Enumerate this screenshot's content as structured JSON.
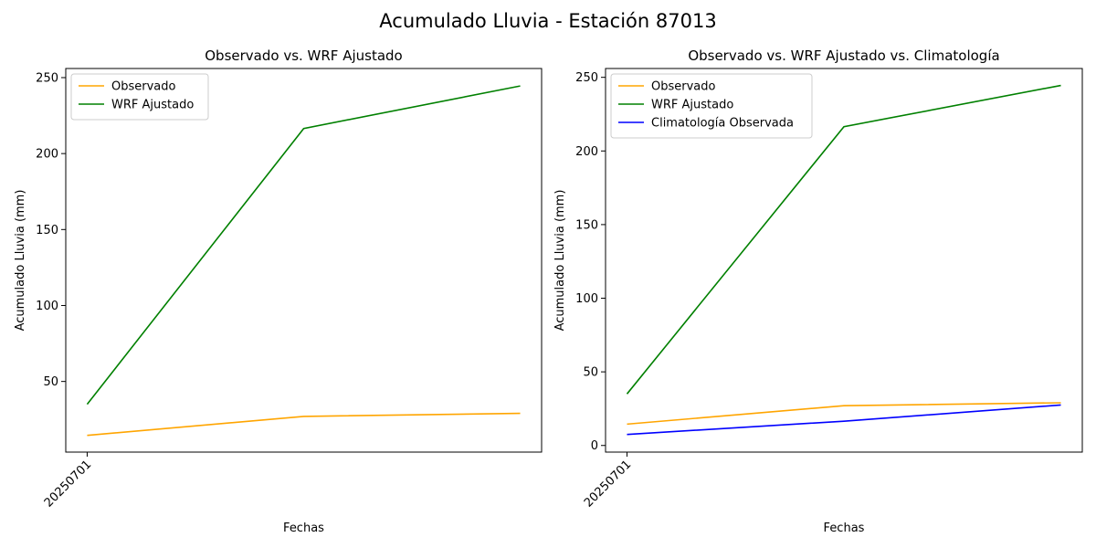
{
  "suptitle": "Acumulado Lluvia - Estación 87013",
  "chart_data": [
    {
      "type": "line",
      "title": "Observado vs. WRF Ajustado",
      "xlabel": "Fechas",
      "ylabel": "Acumulado Lluvia (mm)",
      "x_tick_labels": [
        "20250701"
      ],
      "y_ticks": [
        50,
        100,
        150,
        200,
        250
      ],
      "ylim": [
        3.5,
        256
      ],
      "x_points": 3,
      "legend_position": "upper-left",
      "series": [
        {
          "name": "Observado",
          "color": "#ffa500",
          "values": [
            14.5,
            27,
            29
          ]
        },
        {
          "name": "WRF Ajustado",
          "color": "#008000",
          "values": [
            35,
            216.5,
            244.5
          ]
        }
      ]
    },
    {
      "type": "line",
      "title": "Observado vs. WRF Ajustado vs. Climatología",
      "xlabel": "Fechas",
      "ylabel": "Acumulado Lluvia (mm)",
      "x_tick_labels": [
        "20250701"
      ],
      "y_ticks": [
        0,
        50,
        100,
        150,
        200,
        250
      ],
      "ylim": [
        -4.5,
        256
      ],
      "x_points": 3,
      "legend_position": "upper-left",
      "series": [
        {
          "name": "Observado",
          "color": "#ffa500",
          "values": [
            14.5,
            27,
            29
          ]
        },
        {
          "name": "WRF Ajustado",
          "color": "#008000",
          "values": [
            35,
            216.5,
            244.5
          ]
        },
        {
          "name": "Climatología Observada",
          "color": "#0000ff",
          "values": [
            7.5,
            16.5,
            27.5
          ]
        }
      ]
    }
  ]
}
